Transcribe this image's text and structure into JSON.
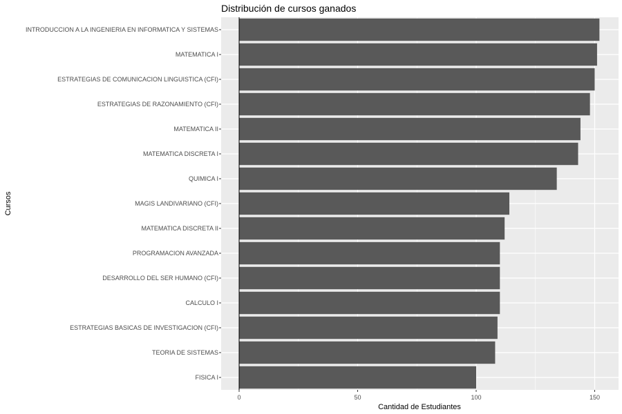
{
  "chart_data": {
    "type": "bar",
    "orientation": "horizontal",
    "title": "Distribución de cursos ganados",
    "xlabel": "Cantidad de Estudiantes",
    "ylabel": "Cursos",
    "categories": [
      "INTRODUCCION A LA INGENIERIA EN INFORMATICA Y SISTEMAS",
      "MATEMATICA I",
      "ESTRATEGIAS DE COMUNICACION LINGUISTICA (CFI)",
      "ESTRATEGIAS DE RAZONAMIENTO (CFI)",
      "MATEMATICA II",
      "MATEMATICA DISCRETA I",
      "QUIMICA I",
      "MAGIS LANDIVARIANO (CFI)",
      "MATEMATICA DISCRETA II",
      "PROGRAMACION AVANZADA",
      "DESARROLLO DEL SER HUMANO (CFI)",
      "CALCULO I",
      "ESTRATEGIAS BASICAS DE INVESTIGACION (CFI)",
      "TEORIA DE SISTEMAS",
      "FISICA I"
    ],
    "values": [
      152,
      151,
      150,
      148,
      144,
      143,
      134,
      114,
      112,
      110,
      110,
      110,
      109,
      108,
      100
    ],
    "xlim": [
      0,
      160
    ],
    "xticks": [
      0,
      50,
      100,
      150
    ],
    "grid": true,
    "legend": "none",
    "colors": {
      "bar": "#595959",
      "panel": "#ebebeb",
      "grid": "#ffffff",
      "axis": "#000000",
      "tick_text": "#4d4d4d"
    }
  }
}
